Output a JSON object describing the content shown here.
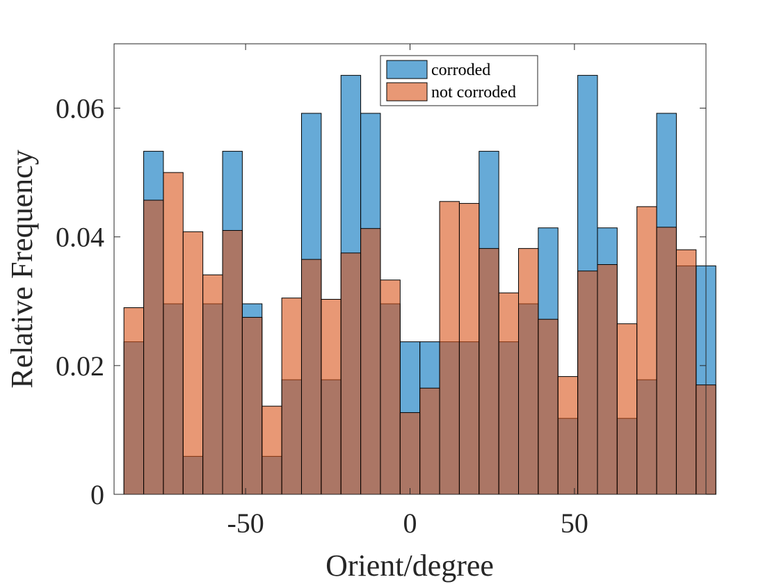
{
  "chart_data": {
    "type": "bar",
    "subtype": "overlapping-histogram",
    "title": "",
    "xlabel": "Orient/degree",
    "ylabel": "Relative Frequency",
    "xlim": [
      -90,
      90
    ],
    "ylim": [
      0,
      0.07
    ],
    "xticks": [
      -50,
      0,
      50
    ],
    "xtick_labels": [
      "-50",
      "0",
      "50"
    ],
    "yticks": [
      0,
      0.02,
      0.04,
      0.06
    ],
    "ytick_labels": [
      "0",
      "0.02",
      "0.04",
      "0.06"
    ],
    "bin_edges": [
      -87,
      -81,
      -75,
      -69,
      -63,
      -57,
      -51,
      -45,
      -39,
      -33,
      -27,
      -21,
      -15,
      -9,
      -3,
      3,
      9,
      15,
      21,
      27,
      33,
      39,
      45,
      51,
      57,
      63,
      69,
      75,
      81,
      87
    ],
    "series": [
      {
        "name": "corroded",
        "color": "#0072BD",
        "values": [
          0.0237,
          0.0533,
          0.0296,
          0.0059,
          0.0296,
          0.0533,
          0.0296,
          0.0059,
          0.0178,
          0.0592,
          0.0178,
          0.0651,
          0.0592,
          0.0296,
          0.0237,
          0.0237,
          0.0237,
          0.0237,
          0.0533,
          0.0237,
          0.0296,
          0.0414,
          0.0118,
          0.0651,
          0.0414,
          0.0118,
          0.0178,
          0.0592,
          0.0355,
          0.0355
        ]
      },
      {
        "name": "not corroded",
        "color": "#D95319",
        "values": [
          0.029,
          0.0457,
          0.05,
          0.0408,
          0.0341,
          0.041,
          0.0275,
          0.0137,
          0.0305,
          0.0365,
          0.0303,
          0.0375,
          0.0413,
          0.0333,
          0.0127,
          0.0165,
          0.0455,
          0.0452,
          0.0382,
          0.0313,
          0.0382,
          0.0272,
          0.0183,
          0.0347,
          0.0357,
          0.0265,
          0.0447,
          0.0415,
          0.038,
          0.017
        ]
      }
    ],
    "legend": {
      "position": "top-center",
      "entries": [
        "corroded",
        "not corroded"
      ]
    },
    "grid": false,
    "box": true
  }
}
